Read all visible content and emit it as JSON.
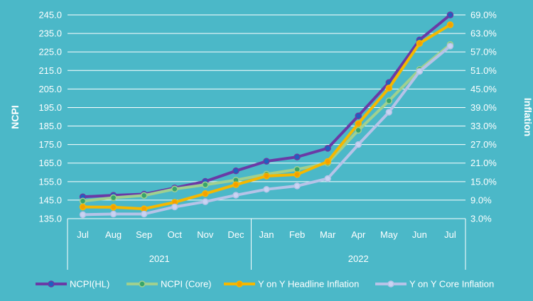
{
  "chart_data": {
    "type": "line",
    "categories": [
      "Jul",
      "Aug",
      "Sep",
      "Oct",
      "Nov",
      "Dec",
      "Jan",
      "Feb",
      "Mar",
      "Apr",
      "May",
      "Jun",
      "Jul"
    ],
    "year_groups": [
      {
        "label": "2021",
        "start": 0,
        "end": 5
      },
      {
        "label": "2022",
        "start": 6,
        "end": 12
      }
    ],
    "ylabel_left": "NCPI",
    "ylabel_right": "Inflation",
    "y_left": {
      "min": 135,
      "max": 245,
      "ticks": [
        "135.0",
        "145.0",
        "155.0",
        "165.0",
        "175.0",
        "185.0",
        "195.0",
        "205.0",
        "215.0",
        "225.0",
        "235.0",
        "245.0"
      ]
    },
    "y_right": {
      "min": 3,
      "max": 69,
      "ticks": [
        "3.0%",
        "9.0%",
        "15.0%",
        "21.0%",
        "27.0%",
        "33.0%",
        "39.0%",
        "45.0%",
        "51.0%",
        "57.0%",
        "63.0%",
        "69.0%"
      ]
    },
    "grid": true,
    "legend_position": "bottom",
    "series": [
      {
        "name": "NCPI(HL)",
        "axis": "left",
        "color": "#6a3aa6",
        "marker": "#1f5fbf",
        "values": [
          146.8,
          147.6,
          148.2,
          151.6,
          155.1,
          160.8,
          166.0,
          168.3,
          173.0,
          190.5,
          208.5,
          231.5,
          245.0
        ]
      },
      {
        "name": "NCPI (Core)",
        "axis": "left",
        "color": "#9fd08f",
        "marker": "#37a56a",
        "values": [
          144.5,
          146.3,
          147.5,
          151.0,
          153.3,
          155.8,
          159.0,
          161.6,
          165.0,
          182.7,
          198.6,
          215.5,
          229.0
        ]
      },
      {
        "name": "Y on Y Headline Inflation",
        "axis": "right",
        "color": "#f5b800",
        "marker": "#f5a000",
        "values": [
          6.8,
          6.7,
          6.2,
          8.3,
          11.1,
          14.0,
          16.8,
          17.3,
          21.5,
          33.8,
          45.3,
          59.8,
          65.8
        ]
      },
      {
        "name": "Y on Y Core Inflation",
        "axis": "right",
        "color": "#b6c3e8",
        "marker": "#c9d3f2",
        "values": [
          4.3,
          4.5,
          4.5,
          6.8,
          8.5,
          10.6,
          12.5,
          13.6,
          16.0,
          27.0,
          37.5,
          50.7,
          58.9
        ]
      }
    ]
  }
}
